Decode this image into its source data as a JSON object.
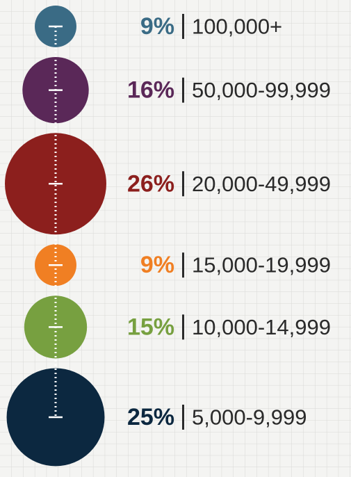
{
  "chart_data": {
    "type": "bubble",
    "categories": [
      "100,000+",
      "50,000-99,999",
      "20,000-49,999",
      "15,000-19,999",
      "10,000-14,999",
      "5,000-9,999"
    ],
    "values": [
      9,
      16,
      26,
      9,
      15,
      25
    ],
    "value_labels": [
      "9%",
      "16%",
      "26%",
      "9%",
      "15%",
      "25%"
    ],
    "colors": [
      "#3a6b85",
      "#5a2858",
      "#8c1f1d",
      "#f07f23",
      "#77a040",
      "#0c2840"
    ]
  }
}
